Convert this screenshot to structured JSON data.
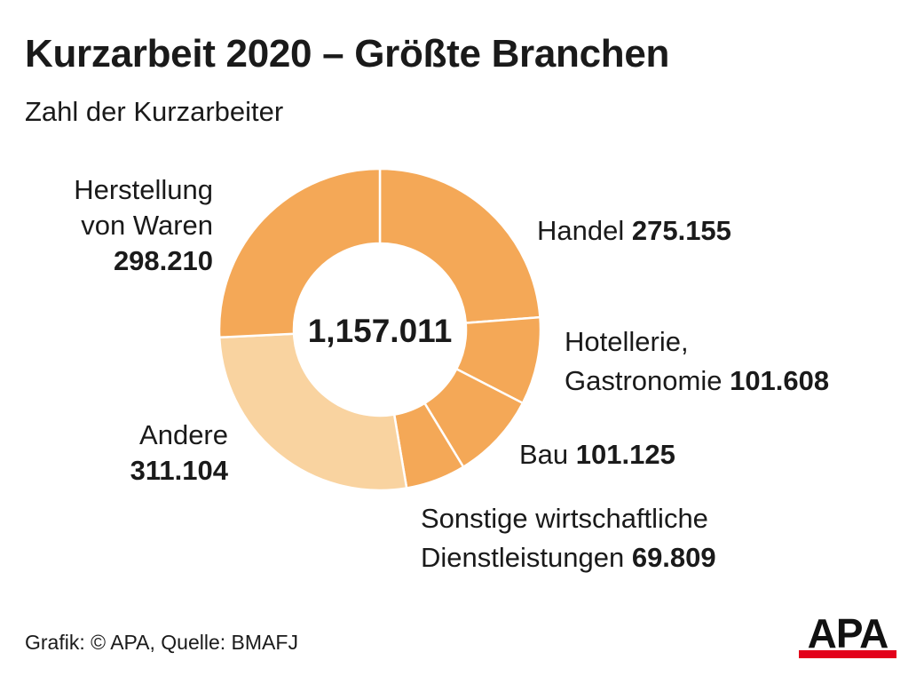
{
  "header": {
    "title": "Kurzarbeit 2020 – Größte Branchen",
    "subtitle": "Zahl der Kurzarbeiter"
  },
  "chart_data": {
    "type": "pie",
    "donut": true,
    "title": "Kurzarbeit 2020 – Größte Branchen",
    "subtitle": "Zahl der Kurzarbeiter",
    "center_label": "1,157.011",
    "slices": [
      {
        "label": "Handel",
        "label_lines": [
          "Handel"
        ],
        "value": 275155,
        "value_label": "275.155",
        "color": "#f4a857"
      },
      {
        "label": "Hotellerie, Gastronomie",
        "label_lines": [
          "Hotellerie,",
          "Gastronomie"
        ],
        "value": 101608,
        "value_label": "101.608",
        "color": "#f4a857"
      },
      {
        "label": "Bau",
        "label_lines": [
          "Bau"
        ],
        "value": 101125,
        "value_label": "101.125",
        "color": "#f4a857"
      },
      {
        "label": "Sonstige wirtschaftliche Dienstleistungen",
        "label_lines": [
          "Sonstige wirtschaftliche",
          "Dienstleistungen"
        ],
        "value": 69809,
        "value_label": "69.809",
        "color": "#f4a857"
      },
      {
        "label": "Andere",
        "label_lines": [
          "Andere"
        ],
        "value": 311104,
        "value_label": "311.104",
        "color": "#f9d3a0"
      },
      {
        "label": "Herstellung von Waren",
        "label_lines": [
          "Herstellung",
          "von Waren"
        ],
        "value": 298210,
        "value_label": "298.210",
        "color": "#f4a857"
      }
    ],
    "legend": "none"
  },
  "footer": {
    "source": "Grafik: © APA, Quelle: BMAFJ"
  },
  "logo": {
    "text": "APA",
    "colors": {
      "text": "#111111",
      "bar": "#e3001b"
    }
  }
}
